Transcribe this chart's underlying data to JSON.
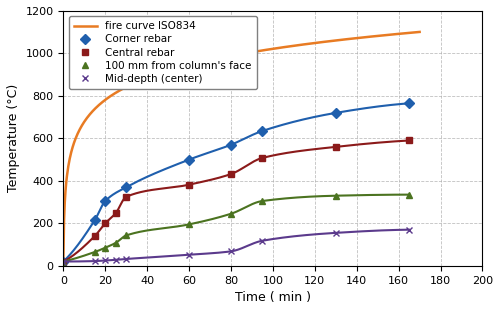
{
  "title": "",
  "xlabel": "Time ( min )",
  "ylabel": "Temperature (°C)",
  "xlim": [
    0,
    200
  ],
  "ylim": [
    0,
    1200
  ],
  "xticks": [
    0,
    20,
    40,
    60,
    80,
    100,
    120,
    140,
    160,
    180,
    200
  ],
  "yticks": [
    0,
    200,
    400,
    600,
    800,
    1000,
    1200
  ],
  "fire_curve_color": "#E87B23",
  "fire_curve_label": "fire curve ISO834",
  "corner_rebar": {
    "label": "Corner rebar",
    "color": "#1F5FAD",
    "marker": "D",
    "x": [
      0,
      15,
      20,
      30,
      60,
      80,
      95,
      130,
      165
    ],
    "y": [
      20,
      215,
      305,
      370,
      500,
      570,
      635,
      720,
      765
    ]
  },
  "central_rebar": {
    "label": "Central rebar",
    "color": "#8B1A1A",
    "marker": "s",
    "x": [
      0,
      15,
      20,
      25,
      30,
      60,
      80,
      95,
      130,
      165
    ],
    "y": [
      20,
      140,
      200,
      248,
      325,
      382,
      432,
      508,
      560,
      590
    ]
  },
  "face_100mm": {
    "label": "100 mm from column's face",
    "color": "#4B7320",
    "marker": "^",
    "x": [
      0,
      15,
      20,
      25,
      30,
      60,
      80,
      95,
      130,
      165
    ],
    "y": [
      20,
      65,
      85,
      108,
      143,
      195,
      245,
      305,
      330,
      335
    ]
  },
  "mid_depth": {
    "label": "Mid-depth (center)",
    "color": "#5B3A8C",
    "marker": "x",
    "x": [
      0,
      15,
      20,
      25,
      30,
      60,
      80,
      95,
      130,
      165
    ],
    "y": [
      20,
      22,
      25,
      28,
      32,
      52,
      68,
      118,
      155,
      170
    ]
  },
  "background_color": "#ffffff",
  "grid_color": "#b0b0b0",
  "figsize": [
    5.0,
    3.11
  ],
  "dpi": 100
}
